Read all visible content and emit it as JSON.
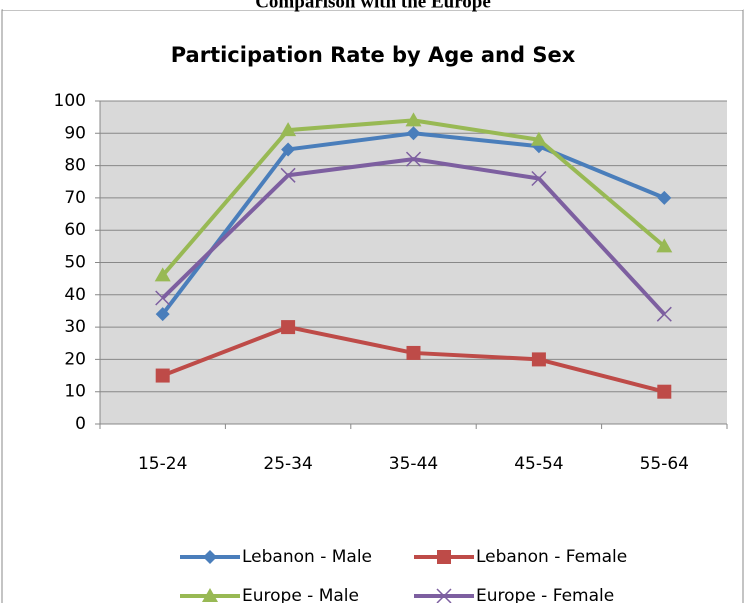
{
  "header": "Comparison with the Europe",
  "chart_data": {
    "type": "line",
    "title": "Participation Rate by Age and Sex",
    "categories": [
      "15-24",
      "25-34",
      "35-44",
      "45-54",
      "55-64"
    ],
    "series": [
      {
        "name": "Lebanon - Male",
        "color": "#4a7ebb",
        "marker": "diamond",
        "values": [
          34,
          85,
          90,
          86,
          70
        ]
      },
      {
        "name": "Lebanon - Female",
        "color": "#be4b48",
        "marker": "square",
        "values": [
          15,
          30,
          22,
          20,
          10
        ]
      },
      {
        "name": "Europe - Male",
        "color": "#98b954",
        "marker": "triangle",
        "values": [
          46,
          91,
          94,
          88,
          55
        ]
      },
      {
        "name": "Europe - Female",
        "color": "#7d5fa0",
        "marker": "x",
        "values": [
          39,
          77,
          82,
          76,
          34
        ]
      }
    ],
    "ylim": [
      0,
      100
    ],
    "yticks": [
      0,
      10,
      20,
      30,
      40,
      50,
      60,
      70,
      80,
      90,
      100
    ],
    "grid": true,
    "legend": "bottom"
  }
}
